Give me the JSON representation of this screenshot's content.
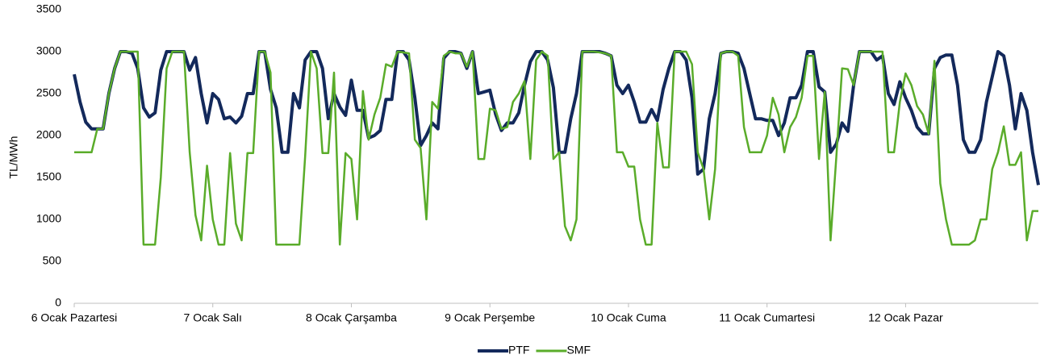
{
  "chart_data": {
    "type": "line",
    "y_label": "TL/MWh",
    "categories": [
      "6 Ocak Pazartesi",
      null,
      null,
      null,
      null,
      null,
      null,
      null,
      null,
      null,
      null,
      null,
      null,
      null,
      null,
      null,
      null,
      null,
      null,
      null,
      null,
      null,
      null,
      null,
      "7 Ocak Salı",
      null,
      null,
      null,
      null,
      null,
      null,
      null,
      null,
      null,
      null,
      null,
      null,
      null,
      null,
      null,
      null,
      null,
      null,
      null,
      null,
      null,
      null,
      null,
      "8 Ocak Çarşamba",
      null,
      null,
      null,
      null,
      null,
      null,
      null,
      null,
      null,
      null,
      null,
      null,
      null,
      null,
      null,
      null,
      null,
      null,
      null,
      null,
      null,
      null,
      null,
      "9 Ocak Perşembe",
      null,
      null,
      null,
      null,
      null,
      null,
      null,
      null,
      null,
      null,
      null,
      null,
      null,
      null,
      null,
      null,
      null,
      null,
      null,
      null,
      null,
      null,
      null,
      "10 Ocak Cuma",
      null,
      null,
      null,
      null,
      null,
      null,
      null,
      null,
      null,
      null,
      null,
      null,
      null,
      null,
      null,
      null,
      null,
      null,
      null,
      null,
      null,
      null,
      null,
      "11 Ocak Cumartesi",
      null,
      null,
      null,
      null,
      null,
      null,
      null,
      null,
      null,
      null,
      null,
      null,
      null,
      null,
      null,
      null,
      null,
      null,
      null,
      null,
      null,
      null,
      null,
      "12 Ocak Pazar",
      null,
      null,
      null,
      null,
      null,
      null,
      null,
      null,
      null,
      null,
      null,
      null,
      null,
      null,
      null,
      null,
      null,
      null,
      null,
      null,
      null,
      null,
      null
    ],
    "series": [
      {
        "name": "PTF",
        "color": "#13295b",
        "values": [
          2730,
          2400,
          2160,
          2080,
          2080,
          2080,
          2500,
          2800,
          3000,
          3000,
          2980,
          2800,
          2330,
          2220,
          2270,
          2780,
          3000,
          3000,
          3000,
          3000,
          2780,
          2930,
          2500,
          2150,
          2500,
          2430,
          2200,
          2220,
          2150,
          2230,
          2500,
          2500,
          3000,
          3000,
          2550,
          2330,
          1800,
          1800,
          2500,
          2330,
          2900,
          3000,
          3000,
          2800,
          2200,
          2500,
          2340,
          2240,
          2660,
          2300,
          2300,
          1970,
          2000,
          2060,
          2430,
          2430,
          3000,
          3000,
          2900,
          2450,
          1880,
          2000,
          2150,
          2080,
          2920,
          3000,
          3000,
          2980,
          2800,
          3000,
          2500,
          2520,
          2540,
          2250,
          2060,
          2150,
          2150,
          2270,
          2600,
          2880,
          3000,
          3000,
          2900,
          2570,
          1800,
          1800,
          2200,
          2500,
          3000,
          3000,
          3000,
          3000,
          2980,
          2950,
          2600,
          2500,
          2600,
          2400,
          2160,
          2160,
          2310,
          2180,
          2550,
          2800,
          3000,
          3000,
          2900,
          2450,
          1540,
          1600,
          2200,
          2500,
          2980,
          3000,
          3000,
          2980,
          2800,
          2500,
          2200,
          2200,
          2180,
          2180,
          2000,
          2150,
          2450,
          2450,
          2600,
          3000,
          3000,
          2580,
          2520,
          1800,
          1900,
          2150,
          2050,
          2600,
          3000,
          3000,
          3000,
          2900,
          2950,
          2500,
          2370,
          2640,
          2450,
          2300,
          2100,
          2020,
          2020,
          2800,
          2930,
          2960,
          2960,
          2600,
          1950,
          1800,
          1800,
          1950,
          2400,
          2700,
          3000,
          2950,
          2600,
          2080,
          2500,
          2300,
          1800,
          1410
        ]
      },
      {
        "name": "SMF",
        "color": "#5aac2a",
        "values": [
          1800,
          1800,
          1800,
          1800,
          2080,
          2080,
          2500,
          2800,
          3000,
          3000,
          3000,
          3000,
          700,
          700,
          700,
          1500,
          2800,
          3000,
          3000,
          3000,
          1800,
          1050,
          750,
          1640,
          1000,
          700,
          700,
          1790,
          950,
          750,
          1790,
          1790,
          3000,
          3000,
          2750,
          700,
          700,
          700,
          700,
          700,
          1750,
          3000,
          2800,
          1790,
          1790,
          2750,
          700,
          1790,
          1720,
          1000,
          2530,
          1950,
          2250,
          2450,
          2850,
          2820,
          3000,
          2990,
          2980,
          1950,
          1850,
          1000,
          2400,
          2320,
          2950,
          3000,
          2980,
          2980,
          2820,
          3000,
          1720,
          1720,
          2320,
          2300,
          2080,
          2100,
          2400,
          2500,
          2650,
          1720,
          2900,
          3000,
          2950,
          1720,
          1800,
          920,
          750,
          1000,
          3000,
          3000,
          3000,
          2990,
          2980,
          2950,
          1800,
          1800,
          1630,
          1630,
          1000,
          700,
          700,
          2150,
          1620,
          1620,
          3000,
          3000,
          3000,
          2850,
          1800,
          1600,
          1000,
          1600,
          2980,
          3000,
          3000,
          2950,
          2100,
          1800,
          1800,
          1800,
          2000,
          2450,
          2250,
          1800,
          2100,
          2220,
          2450,
          2950,
          2950,
          1720,
          2520,
          750,
          1750,
          2800,
          2790,
          2600,
          3000,
          3000,
          3000,
          3000,
          3000,
          1800,
          1800,
          2400,
          2740,
          2600,
          2350,
          2250,
          2020,
          2890,
          1430,
          1000,
          700,
          700,
          700,
          700,
          750,
          1000,
          1000,
          1600,
          1800,
          2110,
          1650,
          1650,
          1800,
          750,
          1100,
          1100
        ]
      }
    ],
    "ylim": [
      0,
      3500
    ],
    "yticks": [
      0,
      500,
      1000,
      1500,
      2000,
      2500,
      3000,
      3500
    ],
    "grid": false,
    "legend": "bottom"
  }
}
